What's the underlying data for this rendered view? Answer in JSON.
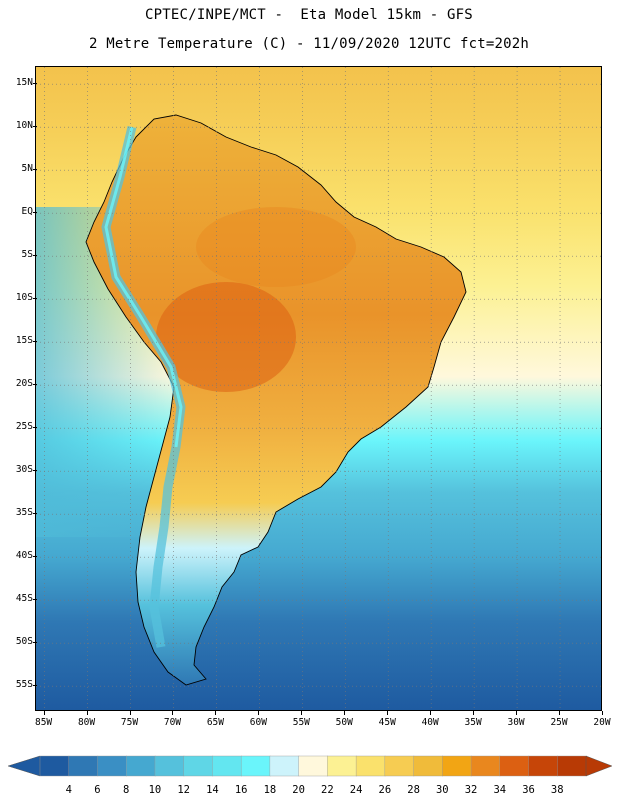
{
  "header": {
    "line1": "CPTEC/INPE/MCT -  Eta Model 15km - GFS",
    "line2": "2 Metre Temperature (C) - 11/09/2020 12UTC fct=202h"
  },
  "map": {
    "region": "South America",
    "variable": "2 Metre Temperature",
    "units": "C",
    "lat_labels": [
      "15N",
      "10N",
      "5N",
      "EQ",
      "5S",
      "10S",
      "15S",
      "20S",
      "25S",
      "30S",
      "35S",
      "40S",
      "45S",
      "50S",
      "55S"
    ],
    "lat_values": [
      15,
      10,
      5,
      0,
      -5,
      -10,
      -15,
      -20,
      -25,
      -30,
      -35,
      -40,
      -45,
      -50,
      -55
    ],
    "lon_labels": [
      "85W",
      "80W",
      "75W",
      "70W",
      "65W",
      "60W",
      "55W",
      "50W",
      "45W",
      "40W",
      "35W",
      "30W",
      "25W",
      "20W"
    ],
    "lon_values": [
      -85,
      -80,
      -75,
      -70,
      -65,
      -60,
      -55,
      -50,
      -45,
      -40,
      -35,
      -30,
      -25,
      -20
    ],
    "extent": {
      "lon_min": -86,
      "lon_max": -20,
      "lat_min": -58,
      "lat_max": 17
    }
  },
  "colorbar": {
    "labels": [
      "4",
      "6",
      "8",
      "10",
      "12",
      "14",
      "16",
      "18",
      "20",
      "22",
      "24",
      "26",
      "28",
      "30",
      "32",
      "34",
      "36",
      "38"
    ],
    "colors": [
      "#1e5aa0",
      "#2f78b4",
      "#3a8fc4",
      "#45a8d0",
      "#55c1dc",
      "#5fd6e6",
      "#63e6f0",
      "#6af5fb",
      "#cdf3fb",
      "#fff8dc",
      "#fcf193",
      "#fae16c",
      "#f6cc52",
      "#f0bb3a",
      "#f2a514",
      "#e9871e",
      "#dc6012",
      "#c64508",
      "#b83a05"
    ],
    "extend_low": "#1e5aa0",
    "extend_high": "#b83a05"
  }
}
